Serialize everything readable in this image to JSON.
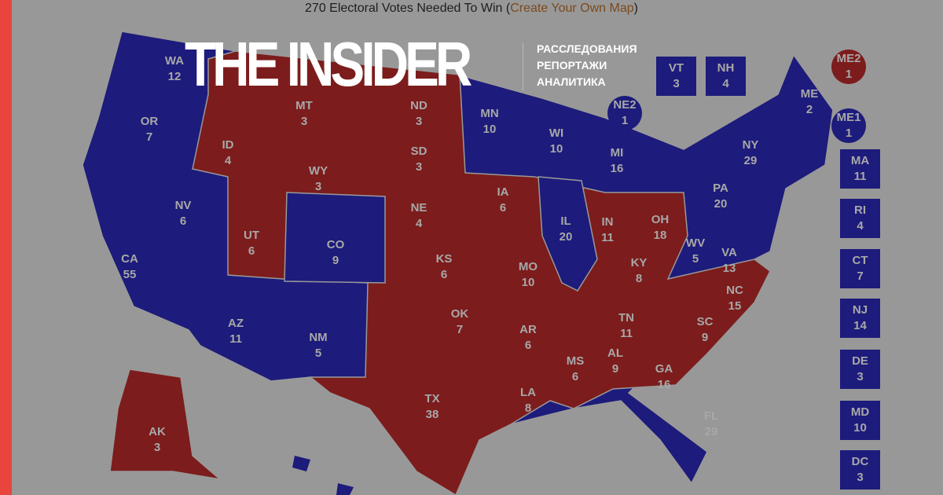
{
  "header": {
    "text": "270 Electoral Votes Needed To Win (",
    "link": "Create Your Own Map",
    "close": ")"
  },
  "logo": {
    "name": "THE INSIDER",
    "tagline": [
      "РАССЛЕДОВАНИЯ",
      "РЕПОРТАЖИ",
      "АНАЛИТИКА"
    ]
  },
  "colors": {
    "democrat": "#1d1b7b",
    "republican": "#7c1c1c",
    "background": "#989898",
    "accent_stripe": "#e8453c"
  },
  "states": [
    {
      "code": "WA",
      "votes": "12",
      "party": "D"
    },
    {
      "code": "OR",
      "votes": "7",
      "party": "D"
    },
    {
      "code": "CA",
      "votes": "55",
      "party": "D"
    },
    {
      "code": "NV",
      "votes": "6",
      "party": "D"
    },
    {
      "code": "ID",
      "votes": "4",
      "party": "R"
    },
    {
      "code": "MT",
      "votes": "3",
      "party": "R"
    },
    {
      "code": "WY",
      "votes": "3",
      "party": "R"
    },
    {
      "code": "UT",
      "votes": "6",
      "party": "R"
    },
    {
      "code": "CO",
      "votes": "9",
      "party": "D"
    },
    {
      "code": "AZ",
      "votes": "11",
      "party": "D"
    },
    {
      "code": "NM",
      "votes": "5",
      "party": "D"
    },
    {
      "code": "ND",
      "votes": "3",
      "party": "R"
    },
    {
      "code": "SD",
      "votes": "3",
      "party": "R"
    },
    {
      "code": "NE",
      "votes": "4",
      "party": "R"
    },
    {
      "code": "KS",
      "votes": "6",
      "party": "R"
    },
    {
      "code": "OK",
      "votes": "7",
      "party": "R"
    },
    {
      "code": "TX",
      "votes": "38",
      "party": "R"
    },
    {
      "code": "MN",
      "votes": "10",
      "party": "D"
    },
    {
      "code": "IA",
      "votes": "6",
      "party": "R"
    },
    {
      "code": "MO",
      "votes": "10",
      "party": "R"
    },
    {
      "code": "AR",
      "votes": "6",
      "party": "R"
    },
    {
      "code": "LA",
      "votes": "8",
      "party": "R"
    },
    {
      "code": "WI",
      "votes": "10",
      "party": "D"
    },
    {
      "code": "IL",
      "votes": "20",
      "party": "D"
    },
    {
      "code": "MI",
      "votes": "16",
      "party": "D"
    },
    {
      "code": "IN",
      "votes": "11",
      "party": "R"
    },
    {
      "code": "OH",
      "votes": "18",
      "party": "R"
    },
    {
      "code": "KY",
      "votes": "8",
      "party": "R"
    },
    {
      "code": "TN",
      "votes": "11",
      "party": "R"
    },
    {
      "code": "MS",
      "votes": "6",
      "party": "R"
    },
    {
      "code": "AL",
      "votes": "9",
      "party": "R"
    },
    {
      "code": "GA",
      "votes": "16",
      "party": "R"
    },
    {
      "code": "SC",
      "votes": "9",
      "party": "R"
    },
    {
      "code": "NC",
      "votes": "15",
      "party": "R"
    },
    {
      "code": "WV",
      "votes": "5",
      "party": "R"
    },
    {
      "code": "VA",
      "votes": "13",
      "party": "D"
    },
    {
      "code": "PA",
      "votes": "20",
      "party": "D"
    },
    {
      "code": "NY",
      "votes": "29",
      "party": "D"
    },
    {
      "code": "ME",
      "votes": "2",
      "party": "D"
    },
    {
      "code": "FL",
      "votes": "29",
      "party": "D"
    },
    {
      "code": "AK",
      "votes": "3",
      "party": "R"
    }
  ],
  "boxes": [
    {
      "code": "NE2",
      "votes": "1",
      "party": "D",
      "shape": "circle"
    },
    {
      "code": "VT",
      "votes": "3",
      "party": "D",
      "shape": "square"
    },
    {
      "code": "NH",
      "votes": "4",
      "party": "D",
      "shape": "square"
    },
    {
      "code": "ME2",
      "votes": "1",
      "party": "R",
      "shape": "circle"
    },
    {
      "code": "ME1",
      "votes": "1",
      "party": "D",
      "shape": "circle"
    },
    {
      "code": "MA",
      "votes": "11",
      "party": "D",
      "shape": "square"
    },
    {
      "code": "RI",
      "votes": "4",
      "party": "D",
      "shape": "square"
    },
    {
      "code": "CT",
      "votes": "7",
      "party": "D",
      "shape": "square"
    },
    {
      "code": "NJ",
      "votes": "14",
      "party": "D",
      "shape": "square"
    },
    {
      "code": "DE",
      "votes": "3",
      "party": "D",
      "shape": "square"
    },
    {
      "code": "MD",
      "votes": "10",
      "party": "D",
      "shape": "square"
    },
    {
      "code": "DC",
      "votes": "3",
      "party": "D",
      "shape": "square"
    }
  ]
}
